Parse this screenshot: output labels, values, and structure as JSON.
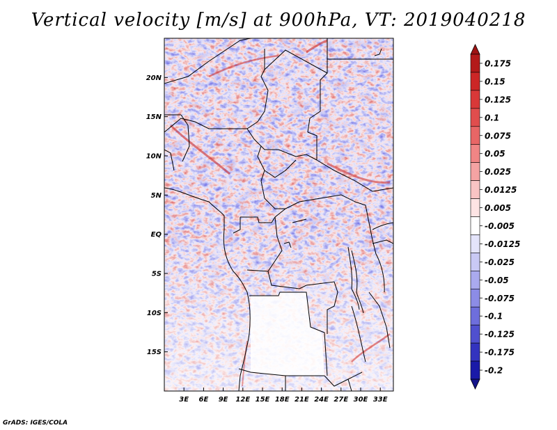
{
  "title": "Vertical velocity [m/s] at 900hPa, VT: 2019040218",
  "credit": "GrADS: IGES/COLA",
  "map": {
    "variable": "Vertical velocity",
    "units": "m/s",
    "level": "900hPa",
    "valid_time": "2019040218",
    "lon_range_deg": [
      0,
      35
    ],
    "lat_range_deg": [
      -20,
      25
    ],
    "lat_ticks": [
      "20N",
      "15N",
      "10N",
      "5N",
      "EQ",
      "5S",
      "10S",
      "15S"
    ],
    "lat_tick_values": [
      20,
      15,
      10,
      5,
      0,
      -5,
      -10,
      -15
    ],
    "lon_ticks": [
      "3E",
      "6E",
      "9E",
      "12E",
      "15E",
      "18E",
      "21E",
      "24E",
      "27E",
      "30E",
      "33E"
    ],
    "lon_tick_values": [
      3,
      6,
      9,
      12,
      15,
      18,
      21,
      24,
      27,
      30,
      33
    ]
  },
  "colorbar": {
    "levels": [
      "0.175",
      "0.15",
      "0.125",
      "0.1",
      "0.075",
      "0.05",
      "0.025",
      "0.0125",
      "0.005",
      "-0.005",
      "-0.0125",
      "-0.025",
      "-0.05",
      "-0.075",
      "-0.1",
      "-0.125",
      "-0.175",
      "-0.2"
    ],
    "colors": [
      "#b31a1a",
      "#cc2626",
      "#d93838",
      "#e04d4d",
      "#e86666",
      "#f08585",
      "#f5a3a3",
      "#f9c4c4",
      "#fde4e4",
      "#ffffff",
      "#e4e4fb",
      "#c9c9f5",
      "#aaaaee",
      "#8c8ce6",
      "#6e6edc",
      "#5050cf",
      "#3333bf",
      "#1a1aa8"
    ],
    "top_color": "#9e1414",
    "bottom_color": "#14148a"
  }
}
